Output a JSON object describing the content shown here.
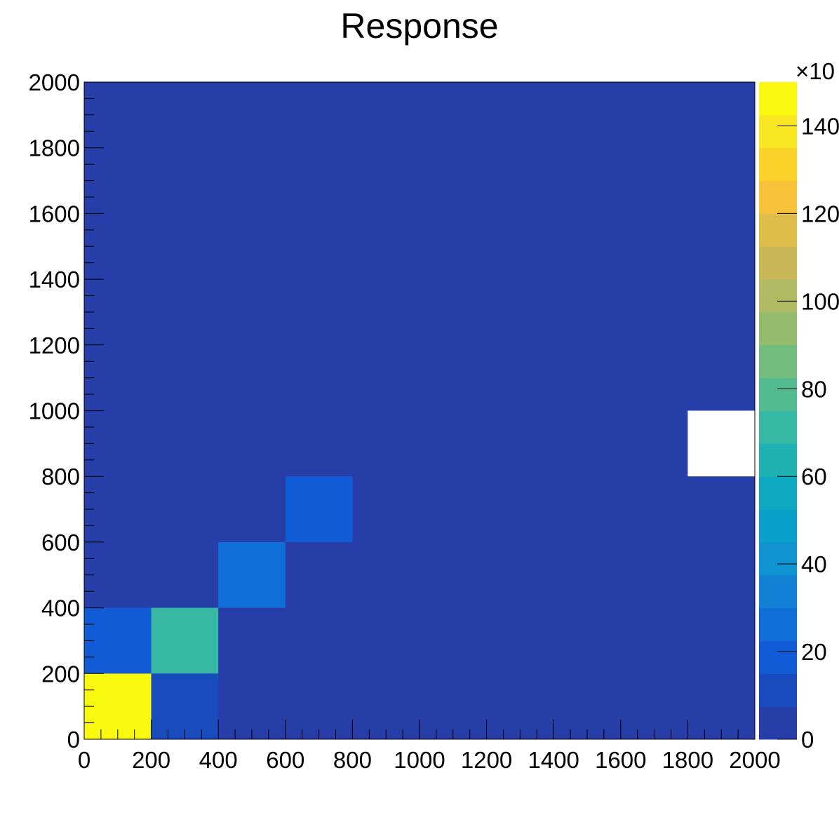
{
  "chart_data": {
    "type": "heatmap",
    "title": "Response",
    "xlabel": "",
    "ylabel": "",
    "x_bin_edges": [
      0,
      200,
      400,
      600,
      800,
      1000,
      1200,
      1400,
      1600,
      1800,
      2000
    ],
    "y_bin_edges": [
      0,
      200,
      400,
      600,
      800,
      1000,
      1200,
      1400,
      1600,
      1800,
      2000
    ],
    "xlim": [
      0,
      2000
    ],
    "ylim": [
      0,
      2000
    ],
    "x_ticks": [
      "0",
      "200",
      "400",
      "600",
      "800",
      "1000",
      "1200",
      "1400",
      "1600",
      "1800",
      "2000"
    ],
    "y_ticks": [
      "0",
      "200",
      "400",
      "600",
      "800",
      "1000",
      "1200",
      "1400",
      "1600",
      "1800",
      "2000"
    ],
    "cells": [
      {
        "x": [
          0,
          200
        ],
        "y": [
          0,
          200
        ],
        "value": 145
      },
      {
        "x": [
          200,
          400
        ],
        "y": [
          0,
          200
        ],
        "value": 12
      },
      {
        "x": [
          0,
          200
        ],
        "y": [
          200,
          400
        ],
        "value": 15
      },
      {
        "x": [
          200,
          400
        ],
        "y": [
          200,
          400
        ],
        "value": 70
      },
      {
        "x": [
          400,
          600
        ],
        "y": [
          400,
          600
        ],
        "value": 25
      },
      {
        "x": [
          600,
          800
        ],
        "y": [
          600,
          800
        ],
        "value": 15
      },
      {
        "x": [
          1800,
          2000
        ],
        "y": [
          800,
          1000
        ],
        "value": null
      }
    ],
    "background_value": 3,
    "colorbar": {
      "zlim": [
        0,
        150
      ],
      "tick_labels": [
        "0",
        "20",
        "40",
        "60",
        "80",
        "100",
        "120",
        "140"
      ],
      "tick_values": [
        0,
        20,
        40,
        60,
        80,
        100,
        120,
        140
      ],
      "exponent_label": "×10",
      "palette": [
        "#273da7",
        "#1a4bbc",
        "#115cd6",
        "#106ed9",
        "#1381d6",
        "#1093d1",
        "#09a1c9",
        "#10aac0",
        "#20b2b3",
        "#36b8a4",
        "#54bb91",
        "#74bc7e",
        "#94bc6e",
        "#b0ba62",
        "#c9b657",
        "#dfbd4a",
        "#f5c239",
        "#fbd22a",
        "#f9e721",
        "#f9f80f"
      ]
    },
    "grid": false,
    "legend": "none"
  }
}
